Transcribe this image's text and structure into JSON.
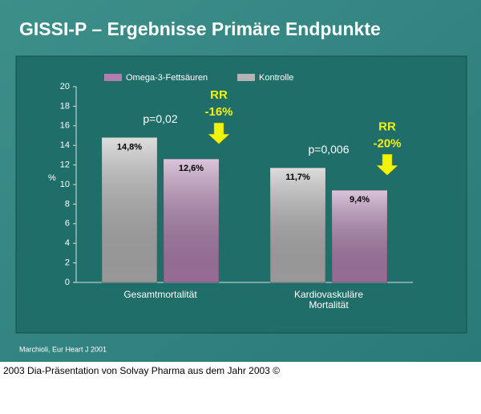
{
  "chart_data": {
    "type": "bar",
    "title": "GISSI-P – Ergebnisse Primäre Endpunkte",
    "y_label": "%",
    "categories": [
      "Gesamtmortalität",
      "Kardiovaskuläre Mortalität"
    ],
    "series": [
      {
        "name": "Omega-3-Fettsäuren",
        "color": "#b07fb0",
        "values": [
          12.6,
          9.4
        ],
        "value_labels": [
          "12,6%",
          "9,4%"
        ]
      },
      {
        "name": "Kontrolle",
        "color": "#b4b4b4",
        "values": [
          14.8,
          11.7
        ],
        "value_labels": [
          "14,8%",
          "11,7%"
        ]
      }
    ],
    "ylim": [
      0,
      20
    ],
    "yticks": [
      0,
      2,
      4,
      6,
      8,
      10,
      12,
      14,
      16,
      18,
      20
    ],
    "annotations": [
      {
        "p": "p=0,02",
        "rr": "RR",
        "change": "-16%"
      },
      {
        "p": "p=0,006",
        "rr": "RR",
        "change": "-20%"
      }
    ],
    "source": "Marchioli, Eur Heart J 2001",
    "caption": "2003 Dia-Präsentation von Solvay Pharma aus dem Jahr 2003 ©"
  }
}
